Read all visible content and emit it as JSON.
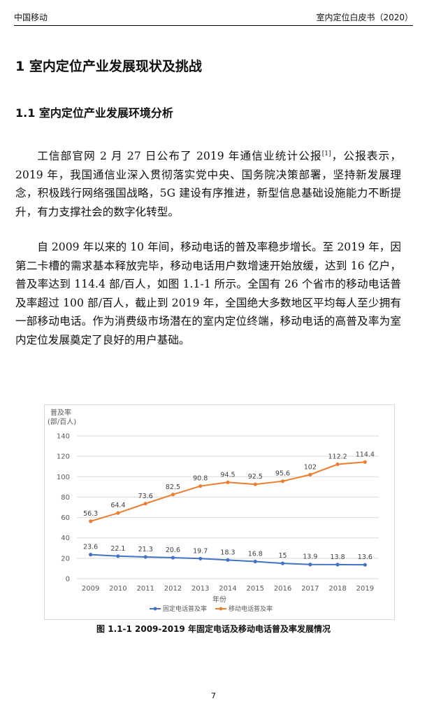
{
  "header": {
    "left": "中国移动",
    "right": "室内定位白皮书（2020）"
  },
  "heading1": "1  室内定位产业发展现状及挑战",
  "heading2": "1.1 室内定位产业发展环境分析",
  "paragraph1": {
    "before_ref": "工信部官网 2 月 27 日公布了 2019 年通信业统计公报",
    "ref": "[1]",
    "after_ref": "，公报表示，2019 年，我国通信业深入贯彻落实党中央、国务院决策部署，坚持新发展理念，积极践行网络强国战略，5G 建设有序推进，新型信息基础设施能力不断提升，有力支撑社会的数字化转型。"
  },
  "paragraph2": "自 2009 年以来的 10 年间，移动电话的普及率稳步增长。至 2019 年，因第二卡槽的需求基本释放完毕，移动电话用户数增速开始放缓，达到 16 亿户，普及率达到 114.4 部/百人，如图 1.1-1 所示。全国有 26 个省市的移动电话普及率超过 100 部/百人，截止到 2019 年，全国绝大多数地区平均每人至少拥有一部移动电话。作为消费级市场潜在的室内定位终端，移动电话的高普及率为室内定位发展奠定了良好的用户基础。",
  "chart_data": {
    "type": "line",
    "ylabel_line1": "普及率",
    "ylabel_line2": "(部/百人)",
    "xlabel": "年份",
    "ylim": [
      0,
      140
    ],
    "yticks": [
      0,
      20,
      40,
      60,
      80,
      100,
      120,
      140
    ],
    "x": [
      "2009",
      "2010",
      "2011",
      "2012",
      "2013",
      "2014",
      "2015",
      "2016",
      "2017",
      "2018",
      "2019"
    ],
    "grid": true,
    "legend_position": "bottom",
    "series": [
      {
        "name": "固定电话普及率",
        "color": "#4472C4",
        "values": [
          23.6,
          22.1,
          21.3,
          20.6,
          19.7,
          18.3,
          16.8,
          15,
          13.9,
          13.8,
          13.6
        ]
      },
      {
        "name": "移动电话普及率",
        "color": "#ED7D31",
        "values": [
          56.3,
          64.4,
          73.6,
          82.5,
          90.8,
          94.5,
          92.5,
          95.6,
          102,
          112.2,
          114.4
        ]
      }
    ]
  },
  "caption": "图  1.1-1 2009-2019 年固定电话及移动电话普及率发展情况",
  "page_number": "7"
}
